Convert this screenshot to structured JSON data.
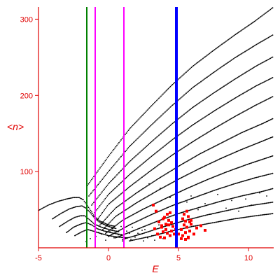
{
  "chart_data": {
    "type": "scatter",
    "xlabel": "E",
    "ylabel": "<n>",
    "xlim": [
      -5,
      11.8
    ],
    "ylim": [
      0,
      316
    ],
    "x_ticks": [
      {
        "value": -5,
        "label": "-5"
      },
      {
        "value": 0,
        "label": "0"
      },
      {
        "value": 5,
        "label": "5"
      },
      {
        "value": 10,
        "label": "10"
      }
    ],
    "y_ticks": [
      {
        "value": 100,
        "label": "100"
      },
      {
        "value": 200,
        "label": "200"
      },
      {
        "value": 300,
        "label": "300"
      }
    ],
    "grid": false,
    "colors": {
      "axis": "#e00000",
      "points": "#000000",
      "highlight": "#ff0000",
      "green_line": "#008000",
      "magenta_line": "#ff00ff",
      "blue_line": "#0000ff"
    },
    "vertical_lines": [
      {
        "x": -1.55,
        "color": "#008000"
      },
      {
        "x": -0.95,
        "color": "#ff00ff"
      },
      {
        "x": 1.1,
        "color": "#ff00ff"
      },
      {
        "x": 4.85,
        "color": "#0000ff",
        "thick": true
      }
    ],
    "series": [
      {
        "kind": "curve",
        "color": "#000000",
        "x": [
          -5,
          -4.3,
          -3.6,
          -3,
          -2.5,
          -2.1,
          -1.8,
          -1.5,
          -1.2,
          -1,
          -0.6,
          0,
          0.5
        ],
        "y": [
          49,
          56,
          61,
          64,
          66,
          66,
          63,
          55,
          47,
          41,
          35,
          30,
          28
        ]
      },
      {
        "kind": "curve",
        "color": "#000000",
        "x": [
          -4,
          -3.4,
          -2.8,
          -2.3,
          -1.9,
          -1.6,
          -1.3,
          -1,
          -0.6,
          0,
          0.6
        ],
        "y": [
          38,
          45,
          51,
          54,
          55,
          52,
          46,
          39,
          33,
          28,
          25
        ]
      },
      {
        "kind": "curve",
        "color": "#000000",
        "x": [
          -3.5,
          -2.9,
          -2.4,
          -2,
          -1.7,
          -1.3,
          -1,
          -0.5,
          0.2,
          0.8
        ],
        "y": [
          28,
          35,
          40,
          42,
          42,
          36,
          31,
          27,
          23,
          21
        ]
      },
      {
        "kind": "curve",
        "color": "#000000",
        "x": [
          -3,
          -2.5,
          -2,
          -1.6,
          -1.2,
          -0.8,
          -0.3,
          0.4,
          1
        ],
        "y": [
          20,
          27,
          31,
          33,
          30,
          25,
          22,
          19,
          17
        ]
      },
      {
        "kind": "curve",
        "color": "#000000",
        "x": [
          -2.4,
          -1.9,
          -1.5,
          -1.1,
          -0.6,
          0,
          0.7,
          1.4
        ],
        "y": [
          16,
          21,
          24,
          22,
          19,
          16,
          14,
          13
        ]
      },
      {
        "kind": "curve",
        "color": "#000000",
        "x": [
          -1.5,
          0,
          1.5,
          3,
          4.5,
          6,
          7.5,
          9,
          10.5,
          11.8
        ],
        "y": [
          82,
          120,
          156,
          185,
          213,
          238,
          259,
          279,
          298,
          316
        ]
      },
      {
        "kind": "curve",
        "color": "#000000",
        "x": [
          -1.4,
          0,
          1.5,
          3,
          4.5,
          6,
          7.5,
          9,
          10.5,
          11.8
        ],
        "y": [
          68,
          100,
          133,
          160,
          186,
          210,
          230,
          249,
          266,
          280
        ]
      },
      {
        "kind": "curve",
        "color": "#000000",
        "x": [
          -1.2,
          0,
          1.5,
          3,
          4.5,
          6,
          7.5,
          9,
          10.5,
          11.8
        ],
        "y": [
          56,
          84,
          113,
          138,
          162,
          184,
          203,
          221,
          238,
          251
        ]
      },
      {
        "kind": "curve",
        "color": "#000000",
        "x": [
          -1,
          0,
          1.5,
          3,
          4.5,
          6,
          7.5,
          9,
          10.5,
          11.8
        ],
        "y": [
          46,
          70,
          96,
          119,
          141,
          161,
          179,
          196,
          212,
          224
        ]
      },
      {
        "kind": "curve",
        "color": "#000000",
        "x": [
          -0.8,
          0,
          1.5,
          3,
          4.5,
          6,
          7.5,
          9,
          10.5,
          11.8
        ],
        "y": [
          37,
          57,
          80,
          101,
          121,
          139,
          156,
          172,
          187,
          199
        ]
      },
      {
        "kind": "curve",
        "color": "#000000",
        "x": [
          -0.6,
          0.5,
          2,
          3.5,
          5,
          6.5,
          8,
          9.5,
          11,
          11.8
        ],
        "y": [
          30,
          52,
          72,
          90,
          107,
          123,
          137,
          151,
          163,
          170
        ]
      },
      {
        "kind": "curve",
        "color": "#000000",
        "x": [
          -0.4,
          0.5,
          2,
          3.5,
          5,
          6.5,
          8,
          9.5,
          11,
          11.8
        ],
        "y": [
          24,
          41,
          59,
          75,
          90,
          104,
          117,
          129,
          140,
          146
        ]
      },
      {
        "kind": "curve",
        "color": "#000000",
        "x": [
          -0.2,
          1,
          2.5,
          4,
          5.5,
          7,
          8.5,
          10,
          11.8
        ],
        "y": [
          19,
          36,
          51,
          64,
          77,
          89,
          100,
          110,
          121
        ]
      },
      {
        "kind": "curve",
        "color": "#000000",
        "x": [
          0,
          1.5,
          3,
          4.5,
          6,
          7.5,
          9,
          10.5,
          11.8
        ],
        "y": [
          15,
          30,
          43,
          55,
          65,
          75,
          84,
          92,
          98
        ]
      },
      {
        "kind": "curve",
        "color": "#000000",
        "x": [
          0.5,
          2,
          3.5,
          5,
          6.5,
          8,
          9.5,
          11,
          11.8
        ],
        "y": [
          13,
          24,
          35,
          45,
          53,
          61,
          68,
          74,
          78
        ]
      },
      {
        "kind": "curve",
        "color": "#000000",
        "x": [
          1,
          2.5,
          4,
          5.5,
          7,
          8.5,
          10,
          11.8
        ],
        "y": [
          11,
          19,
          28,
          36,
          43,
          49,
          55,
          60
        ]
      },
      {
        "kind": "curve",
        "color": "#000000",
        "x": [
          1.5,
          3,
          4.5,
          6,
          7.5,
          9,
          10.5,
          11.8
        ],
        "y": [
          9,
          15,
          22,
          28,
          33,
          38,
          42,
          45
        ]
      },
      {
        "kind": "scatter",
        "color": "#000000",
        "x": [
          -1.6,
          -1.3,
          -0.9,
          -0.5,
          -0.2,
          0.1,
          0.4,
          0.7,
          1,
          1.3,
          1.6,
          1.9,
          2.2,
          2.5,
          2.8,
          3.1,
          3.3,
          2.6,
          2.1,
          1.7,
          0.3,
          -0.7,
          0.9,
          1.5,
          2.4,
          3.6,
          3.9,
          5.6,
          5.9,
          6.4,
          6.9,
          7.3,
          7.8,
          8.4,
          8.8,
          9.3,
          9.8,
          10.2,
          10.8,
          11.3,
          4.4,
          3.7,
          2.9
        ],
        "y": [
          8,
          12,
          15,
          18,
          10,
          21,
          13,
          17,
          9,
          22,
          11,
          14,
          18,
          9,
          13,
          16,
          10,
          24,
          19,
          27,
          25,
          20,
          28,
          19,
          23,
          30,
          12,
          60,
          68,
          50,
          58,
          44,
          70,
          52,
          62,
          48,
          64,
          56,
          72,
          68,
          66,
          78,
          84
        ]
      },
      {
        "kind": "highlight",
        "color": "#ff0000",
        "x": [
          3.3,
          3.5,
          3.7,
          3.8,
          3.9,
          4,
          4.1,
          4.2,
          4.3,
          4.4,
          4.5,
          4.6,
          4.7,
          3.6,
          3.9,
          4.1,
          4.3,
          4.5,
          4.2,
          3.8,
          4,
          4.4,
          5.2,
          5.3,
          5.4,
          5.5,
          5.6,
          5.7,
          5.8,
          5.9,
          6.1,
          6.3,
          6.6,
          6.9,
          5.3,
          5.5,
          5.7,
          5.9,
          5.4,
          5.6,
          5.8,
          5.2,
          5.5,
          5.7,
          3.2,
          3.4,
          4.8,
          5
        ],
        "y": [
          25,
          18,
          14,
          27,
          21,
          13,
          24,
          19,
          30,
          16,
          22,
          28,
          18,
          34,
          38,
          31,
          36,
          33,
          44,
          29,
          40,
          46,
          24,
          16,
          30,
          20,
          27,
          14,
          22,
          31,
          18,
          26,
          29,
          23,
          38,
          35,
          41,
          36,
          44,
          48,
          34,
          12,
          11,
          13,
          56,
          48,
          24,
          18
        ]
      }
    ]
  }
}
